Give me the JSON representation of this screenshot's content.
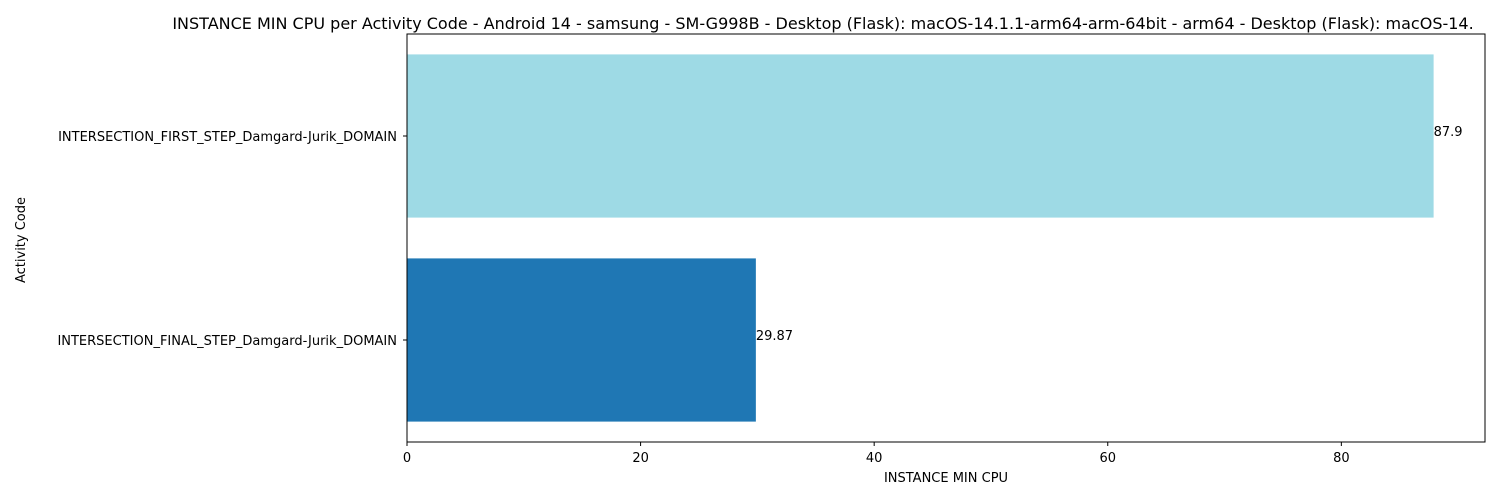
{
  "chart_data": {
    "type": "bar",
    "orientation": "horizontal",
    "title": "INSTANCE MIN CPU per Activity Code - Android 14 - samsung - SM-G998B - Desktop (Flask): macOS-14.1.1-arm64-arm-64bit - arm64 - Desktop (Flask): macOS-14.",
    "xlabel": "INSTANCE MIN CPU",
    "ylabel": "Activity Code",
    "categories": [
      "INTERSECTION_FIRST_STEP_Damgard-Jurik_DOMAIN",
      "INTERSECTION_FINAL_STEP_Damgard-Jurik_DOMAIN"
    ],
    "values": [
      87.9,
      29.87
    ],
    "value_labels": [
      "87.9",
      "29.87"
    ],
    "bar_colors": [
      "#9edae5",
      "#1f77b4"
    ],
    "xlim": [
      0,
      92.3
    ],
    "xticks": [
      0,
      20,
      40,
      60,
      80
    ],
    "xtick_labels": [
      "0",
      "20",
      "40",
      "60",
      "80"
    ],
    "grid": false,
    "legend": false
  }
}
